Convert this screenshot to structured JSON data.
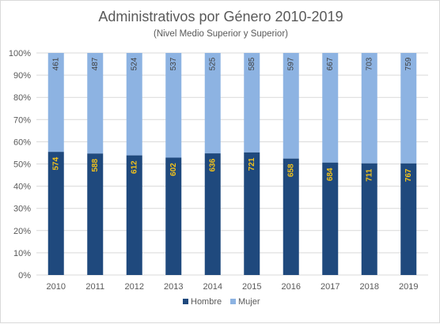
{
  "chart_data": {
    "type": "bar",
    "stacked": "percent",
    "title": "Administrativos por Género 2010-2019",
    "subtitle": "(Nivel Medio Superior y Superior)",
    "categories": [
      "2010",
      "2011",
      "2012",
      "2013",
      "2014",
      "2015",
      "2016",
      "2017",
      "2018",
      "2019"
    ],
    "series": [
      {
        "name": "Hombre",
        "color": "#1f497d",
        "label_color": "#f2c21b",
        "values": [
          574,
          588,
          612,
          602,
          636,
          721,
          658,
          684,
          711,
          767
        ]
      },
      {
        "name": "Mujer",
        "color": "#8db3e2",
        "label_color": "#404040",
        "values": [
          461,
          487,
          524,
          537,
          525,
          585,
          597,
          667,
          703,
          759
        ]
      }
    ],
    "y_ticks": [
      "0%",
      "10%",
      "20%",
      "30%",
      "40%",
      "50%",
      "60%",
      "70%",
      "80%",
      "90%",
      "100%"
    ],
    "ylim": [
      0,
      100
    ],
    "grid": true,
    "legend": "bottom"
  }
}
